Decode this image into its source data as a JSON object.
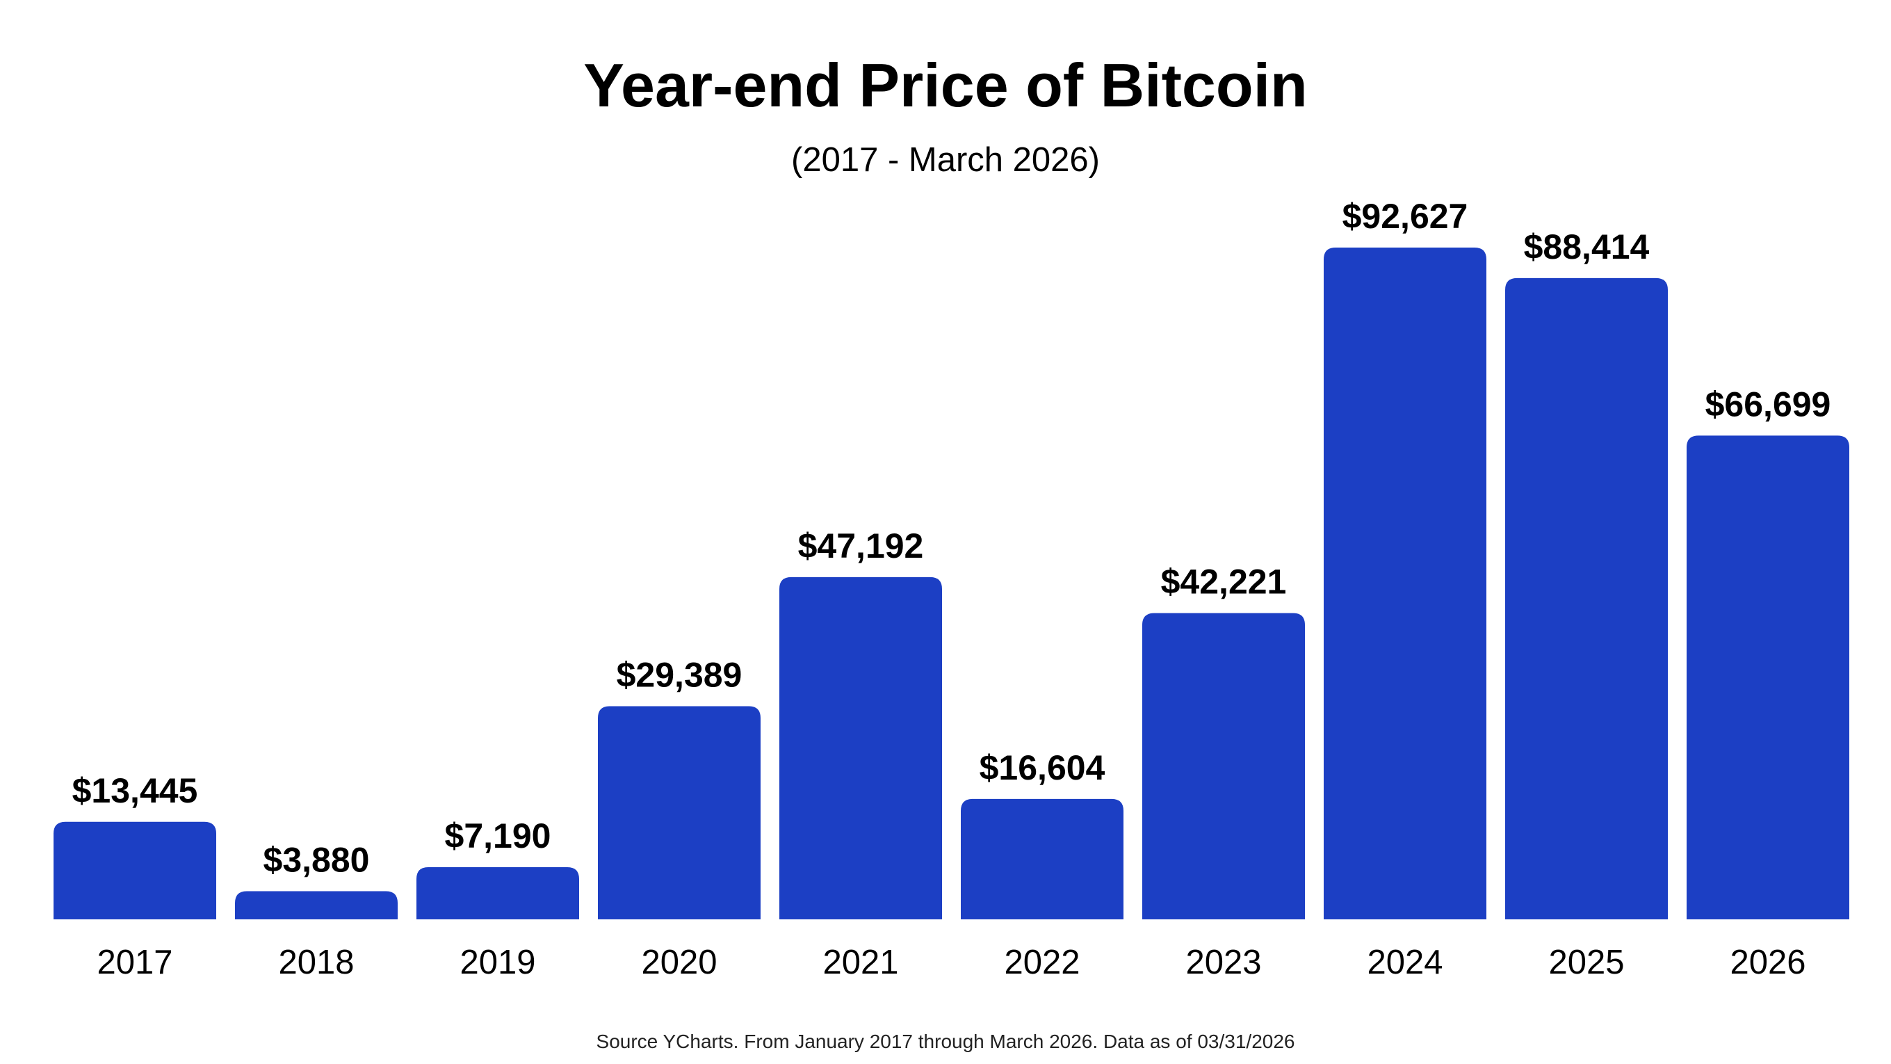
{
  "chart_data": {
    "type": "bar",
    "title": "Year-end Price of Bitcoin",
    "subtitle": "(2017 - March 2026)",
    "xlabel": "",
    "ylabel": "",
    "ylim": [
      0,
      92627
    ],
    "grid": false,
    "categories": [
      "2017",
      "2018",
      "2019",
      "2020",
      "2021",
      "2022",
      "2023",
      "2024",
      "2025",
      "2026"
    ],
    "values": [
      13445,
      3880,
      7190,
      29389,
      47192,
      16604,
      42221,
      92627,
      88414,
      66699
    ],
    "data_labels": [
      "$13,445",
      "$3,880",
      "$7,190",
      "$29,389",
      "$47,192",
      "$16,604",
      "$42,221",
      "$92,627",
      "$88,414",
      "$66,699"
    ],
    "bar_color": "#1c3fc4",
    "footer": "Source YCharts. From January 2017 through March 2026. Data as of 03/31/2026"
  }
}
